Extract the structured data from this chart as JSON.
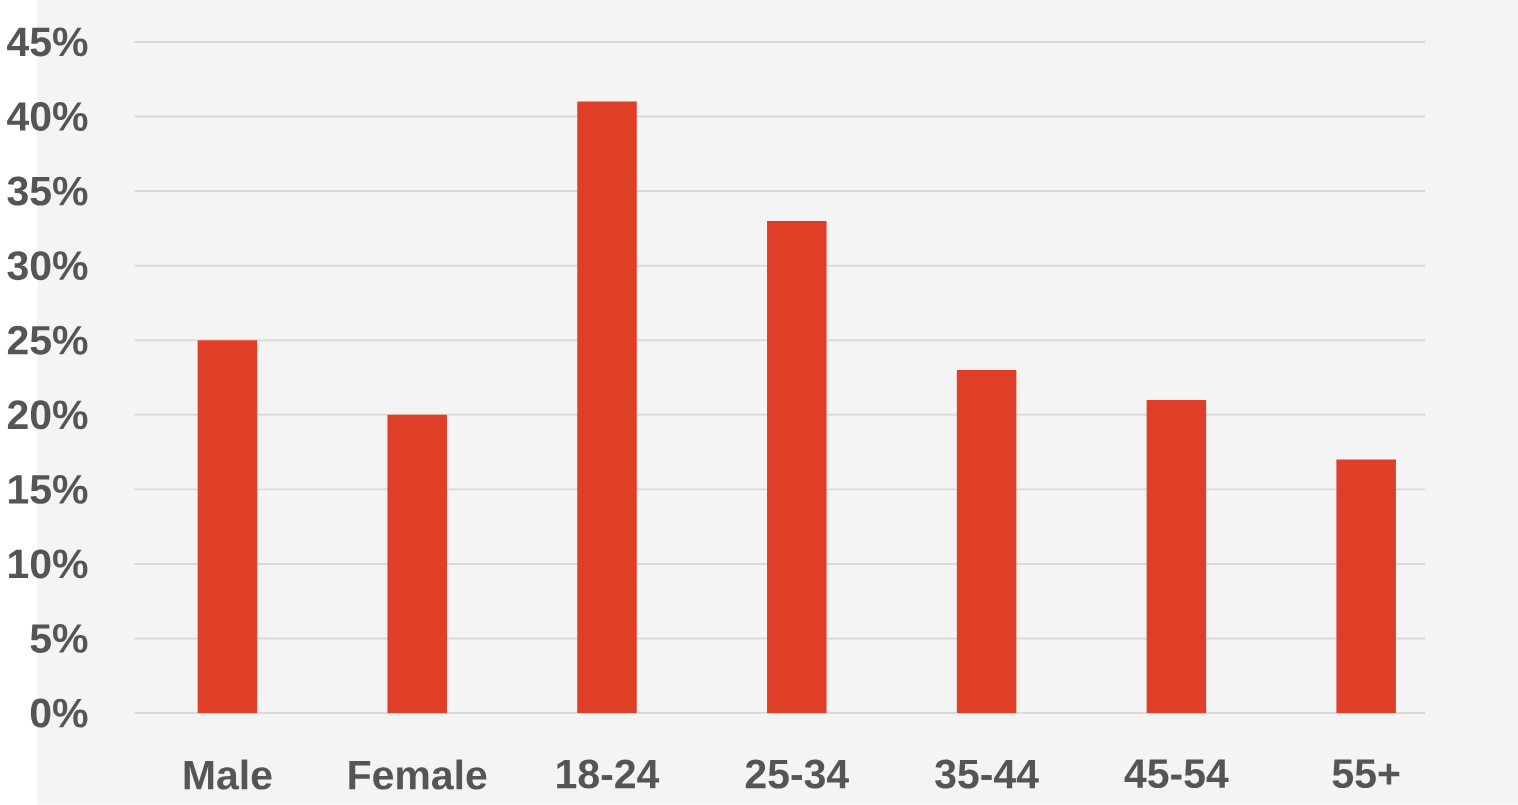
{
  "chart_data": {
    "type": "bar",
    "categories": [
      "Male",
      "Female",
      "18-24",
      "25-34",
      "35-44",
      "45-54",
      "55+"
    ],
    "values": [
      25,
      20,
      41,
      33,
      23,
      21,
      17
    ],
    "color": "#de3f26",
    "ylim": [
      0,
      45
    ],
    "yticks": [
      {
        "value": 0,
        "label": "0%"
      },
      {
        "value": 5,
        "label": "5%"
      },
      {
        "value": 10,
        "label": "10%"
      },
      {
        "value": 15,
        "label": "15%"
      },
      {
        "value": 20,
        "label": "20%"
      },
      {
        "value": 25,
        "label": "25%"
      },
      {
        "value": 30,
        "label": "30%"
      },
      {
        "value": 35,
        "label": "35%"
      },
      {
        "value": 40,
        "label": "40%"
      },
      {
        "value": 45,
        "label": "45%"
      }
    ],
    "grid": "y"
  }
}
